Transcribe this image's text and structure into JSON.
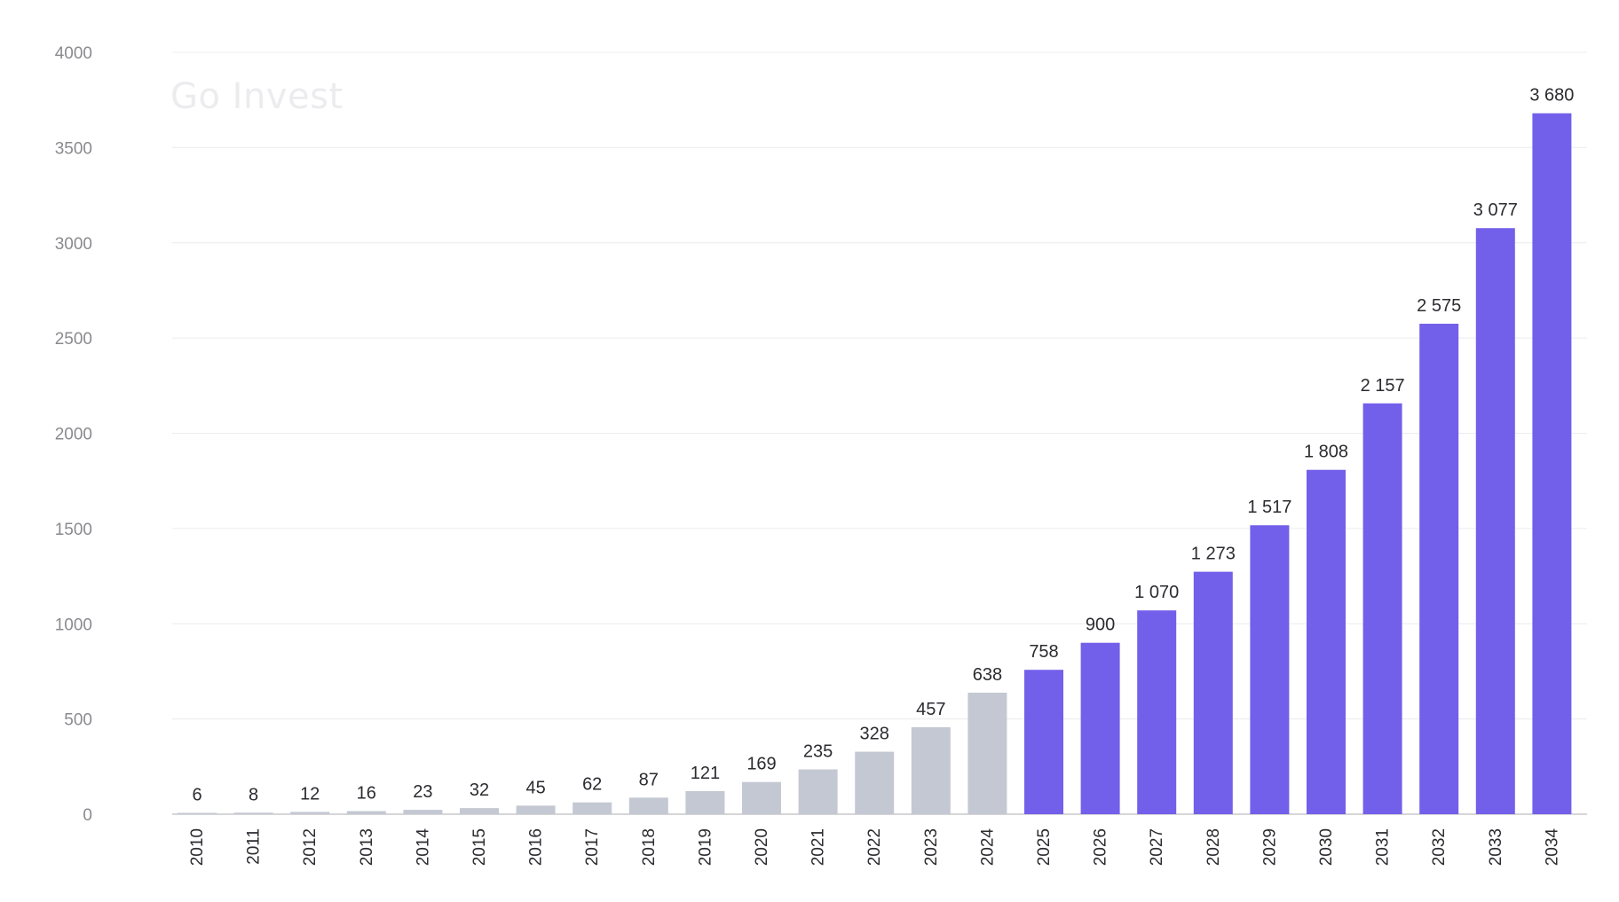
{
  "watermark": "Go Invest",
  "colors": {
    "historical": "#c4c8d3",
    "forecast": "#7260ea",
    "grid": "#ececec",
    "axis": "#c9c9cc",
    "label": "#2b2b30",
    "tick": "#8a8a8f"
  },
  "chart_data": {
    "type": "bar",
    "categories": [
      "2010",
      "2011",
      "2012",
      "2013",
      "2014",
      "2015",
      "2016",
      "2017",
      "2018",
      "2019",
      "2020",
      "2021",
      "2022",
      "2023",
      "2024",
      "2025",
      "2026",
      "2027",
      "2028",
      "2029",
      "2030",
      "2031",
      "2032",
      "2033",
      "2034"
    ],
    "values": [
      6,
      8,
      12,
      16,
      23,
      32,
      45,
      62,
      87,
      121,
      169,
      235,
      328,
      457,
      638,
      758,
      900,
      1070,
      1273,
      1517,
      1808,
      2157,
      2575,
      3077,
      3680
    ],
    "value_labels": [
      "6",
      "8",
      "12",
      "16",
      "23",
      "32",
      "45",
      "62",
      "87",
      "121",
      "169",
      "235",
      "328",
      "457",
      "638",
      "758",
      "900",
      "1 070",
      "1 273",
      "1 517",
      "1 808",
      "2 157",
      "2 575",
      "3 077",
      "3 680"
    ],
    "highlight_from_category": "2025",
    "title": "",
    "xlabel": "",
    "ylabel": "",
    "ylim": [
      0,
      4000
    ],
    "yticks": [
      0,
      500,
      1000,
      1500,
      2000,
      2500,
      3000,
      3500,
      4000
    ],
    "ytick_labels": [
      "0",
      "500",
      "1000",
      "1500",
      "2000",
      "2500",
      "3000",
      "3500",
      "4000"
    ],
    "grid": true,
    "legend": "none"
  }
}
